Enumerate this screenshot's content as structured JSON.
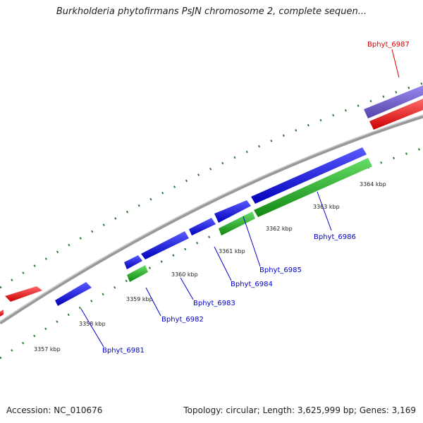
{
  "title": "Burkholderia phytofirmans PsJN chromosome 2, complete sequen...",
  "footer": {
    "accession": "Accession: NC_010676",
    "summary": "Topology: circular; Length: 3,625,999 bp; Genes: 3,169"
  },
  "colors": {
    "forward_gene": "#1111dd",
    "reverse_gene_outer": "#ee1111",
    "reverse_gene_inner": "#22aa22",
    "highlight_gene": "#7766cc",
    "backbone": "#888888",
    "tick": "#226622",
    "label_blue": "#0000cc",
    "label_red": "#dd0000"
  },
  "ticks": [
    "3357 kbp",
    "3358 kbp",
    "3359 kbp",
    "3360 kbp",
    "3361 kbp",
    "3362 kbp",
    "3363 kbp",
    "3364 kbp"
  ],
  "genes": [
    "Bphyt_6981",
    "Bphyt_6982",
    "Bphyt_6983",
    "Bphyt_6984",
    "Bphyt_6985",
    "Bphyt_6986",
    "Bphyt_6987"
  ]
}
